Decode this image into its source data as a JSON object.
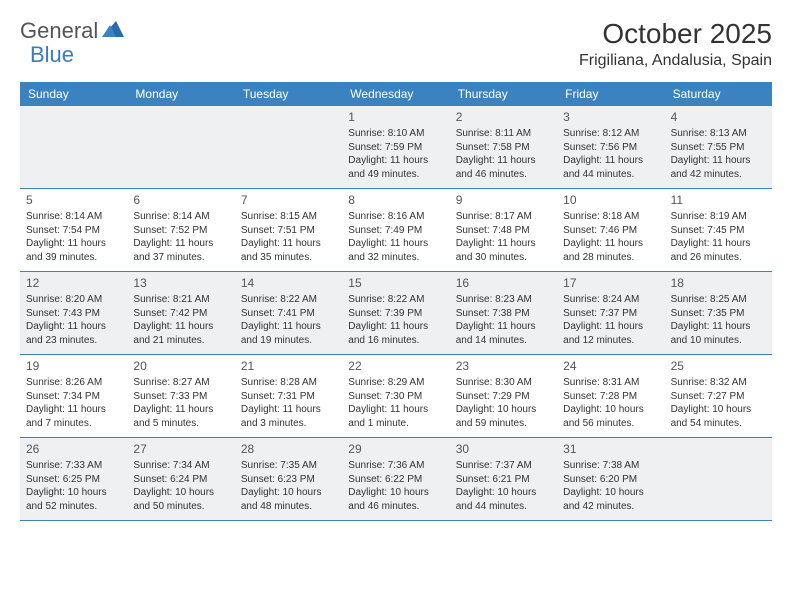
{
  "logo": {
    "word1": "General",
    "word2": "Blue"
  },
  "month_title": "October 2025",
  "location": "Frigiliana, Andalusia, Spain",
  "header_bg": "#3b83c0",
  "weekdays": [
    "Sunday",
    "Monday",
    "Tuesday",
    "Wednesday",
    "Thursday",
    "Friday",
    "Saturday"
  ],
  "shaded_bg": "#eef0f1",
  "border_color": "#3b83c0",
  "weeks": [
    [
      {
        "n": "",
        "sunrise": "",
        "sunset": "",
        "daylight": "",
        "empty": true
      },
      {
        "n": "",
        "sunrise": "",
        "sunset": "",
        "daylight": "",
        "empty": true
      },
      {
        "n": "",
        "sunrise": "",
        "sunset": "",
        "daylight": "",
        "empty": true
      },
      {
        "n": "1",
        "sunrise": "Sunrise: 8:10 AM",
        "sunset": "Sunset: 7:59 PM",
        "daylight": "Daylight: 11 hours and 49 minutes."
      },
      {
        "n": "2",
        "sunrise": "Sunrise: 8:11 AM",
        "sunset": "Sunset: 7:58 PM",
        "daylight": "Daylight: 11 hours and 46 minutes."
      },
      {
        "n": "3",
        "sunrise": "Sunrise: 8:12 AM",
        "sunset": "Sunset: 7:56 PM",
        "daylight": "Daylight: 11 hours and 44 minutes."
      },
      {
        "n": "4",
        "sunrise": "Sunrise: 8:13 AM",
        "sunset": "Sunset: 7:55 PM",
        "daylight": "Daylight: 11 hours and 42 minutes."
      }
    ],
    [
      {
        "n": "5",
        "sunrise": "Sunrise: 8:14 AM",
        "sunset": "Sunset: 7:54 PM",
        "daylight": "Daylight: 11 hours and 39 minutes."
      },
      {
        "n": "6",
        "sunrise": "Sunrise: 8:14 AM",
        "sunset": "Sunset: 7:52 PM",
        "daylight": "Daylight: 11 hours and 37 minutes."
      },
      {
        "n": "7",
        "sunrise": "Sunrise: 8:15 AM",
        "sunset": "Sunset: 7:51 PM",
        "daylight": "Daylight: 11 hours and 35 minutes."
      },
      {
        "n": "8",
        "sunrise": "Sunrise: 8:16 AM",
        "sunset": "Sunset: 7:49 PM",
        "daylight": "Daylight: 11 hours and 32 minutes."
      },
      {
        "n": "9",
        "sunrise": "Sunrise: 8:17 AM",
        "sunset": "Sunset: 7:48 PM",
        "daylight": "Daylight: 11 hours and 30 minutes."
      },
      {
        "n": "10",
        "sunrise": "Sunrise: 8:18 AM",
        "sunset": "Sunset: 7:46 PM",
        "daylight": "Daylight: 11 hours and 28 minutes."
      },
      {
        "n": "11",
        "sunrise": "Sunrise: 8:19 AM",
        "sunset": "Sunset: 7:45 PM",
        "daylight": "Daylight: 11 hours and 26 minutes."
      }
    ],
    [
      {
        "n": "12",
        "sunrise": "Sunrise: 8:20 AM",
        "sunset": "Sunset: 7:43 PM",
        "daylight": "Daylight: 11 hours and 23 minutes."
      },
      {
        "n": "13",
        "sunrise": "Sunrise: 8:21 AM",
        "sunset": "Sunset: 7:42 PM",
        "daylight": "Daylight: 11 hours and 21 minutes."
      },
      {
        "n": "14",
        "sunrise": "Sunrise: 8:22 AM",
        "sunset": "Sunset: 7:41 PM",
        "daylight": "Daylight: 11 hours and 19 minutes."
      },
      {
        "n": "15",
        "sunrise": "Sunrise: 8:22 AM",
        "sunset": "Sunset: 7:39 PM",
        "daylight": "Daylight: 11 hours and 16 minutes."
      },
      {
        "n": "16",
        "sunrise": "Sunrise: 8:23 AM",
        "sunset": "Sunset: 7:38 PM",
        "daylight": "Daylight: 11 hours and 14 minutes."
      },
      {
        "n": "17",
        "sunrise": "Sunrise: 8:24 AM",
        "sunset": "Sunset: 7:37 PM",
        "daylight": "Daylight: 11 hours and 12 minutes."
      },
      {
        "n": "18",
        "sunrise": "Sunrise: 8:25 AM",
        "sunset": "Sunset: 7:35 PM",
        "daylight": "Daylight: 11 hours and 10 minutes."
      }
    ],
    [
      {
        "n": "19",
        "sunrise": "Sunrise: 8:26 AM",
        "sunset": "Sunset: 7:34 PM",
        "daylight": "Daylight: 11 hours and 7 minutes."
      },
      {
        "n": "20",
        "sunrise": "Sunrise: 8:27 AM",
        "sunset": "Sunset: 7:33 PM",
        "daylight": "Daylight: 11 hours and 5 minutes."
      },
      {
        "n": "21",
        "sunrise": "Sunrise: 8:28 AM",
        "sunset": "Sunset: 7:31 PM",
        "daylight": "Daylight: 11 hours and 3 minutes."
      },
      {
        "n": "22",
        "sunrise": "Sunrise: 8:29 AM",
        "sunset": "Sunset: 7:30 PM",
        "daylight": "Daylight: 11 hours and 1 minute."
      },
      {
        "n": "23",
        "sunrise": "Sunrise: 8:30 AM",
        "sunset": "Sunset: 7:29 PM",
        "daylight": "Daylight: 10 hours and 59 minutes."
      },
      {
        "n": "24",
        "sunrise": "Sunrise: 8:31 AM",
        "sunset": "Sunset: 7:28 PM",
        "daylight": "Daylight: 10 hours and 56 minutes."
      },
      {
        "n": "25",
        "sunrise": "Sunrise: 8:32 AM",
        "sunset": "Sunset: 7:27 PM",
        "daylight": "Daylight: 10 hours and 54 minutes."
      }
    ],
    [
      {
        "n": "26",
        "sunrise": "Sunrise: 7:33 AM",
        "sunset": "Sunset: 6:25 PM",
        "daylight": "Daylight: 10 hours and 52 minutes."
      },
      {
        "n": "27",
        "sunrise": "Sunrise: 7:34 AM",
        "sunset": "Sunset: 6:24 PM",
        "daylight": "Daylight: 10 hours and 50 minutes."
      },
      {
        "n": "28",
        "sunrise": "Sunrise: 7:35 AM",
        "sunset": "Sunset: 6:23 PM",
        "daylight": "Daylight: 10 hours and 48 minutes."
      },
      {
        "n": "29",
        "sunrise": "Sunrise: 7:36 AM",
        "sunset": "Sunset: 6:22 PM",
        "daylight": "Daylight: 10 hours and 46 minutes."
      },
      {
        "n": "30",
        "sunrise": "Sunrise: 7:37 AM",
        "sunset": "Sunset: 6:21 PM",
        "daylight": "Daylight: 10 hours and 44 minutes."
      },
      {
        "n": "31",
        "sunrise": "Sunrise: 7:38 AM",
        "sunset": "Sunset: 6:20 PM",
        "daylight": "Daylight: 10 hours and 42 minutes."
      },
      {
        "n": "",
        "sunrise": "",
        "sunset": "",
        "daylight": "",
        "empty": true
      }
    ]
  ]
}
